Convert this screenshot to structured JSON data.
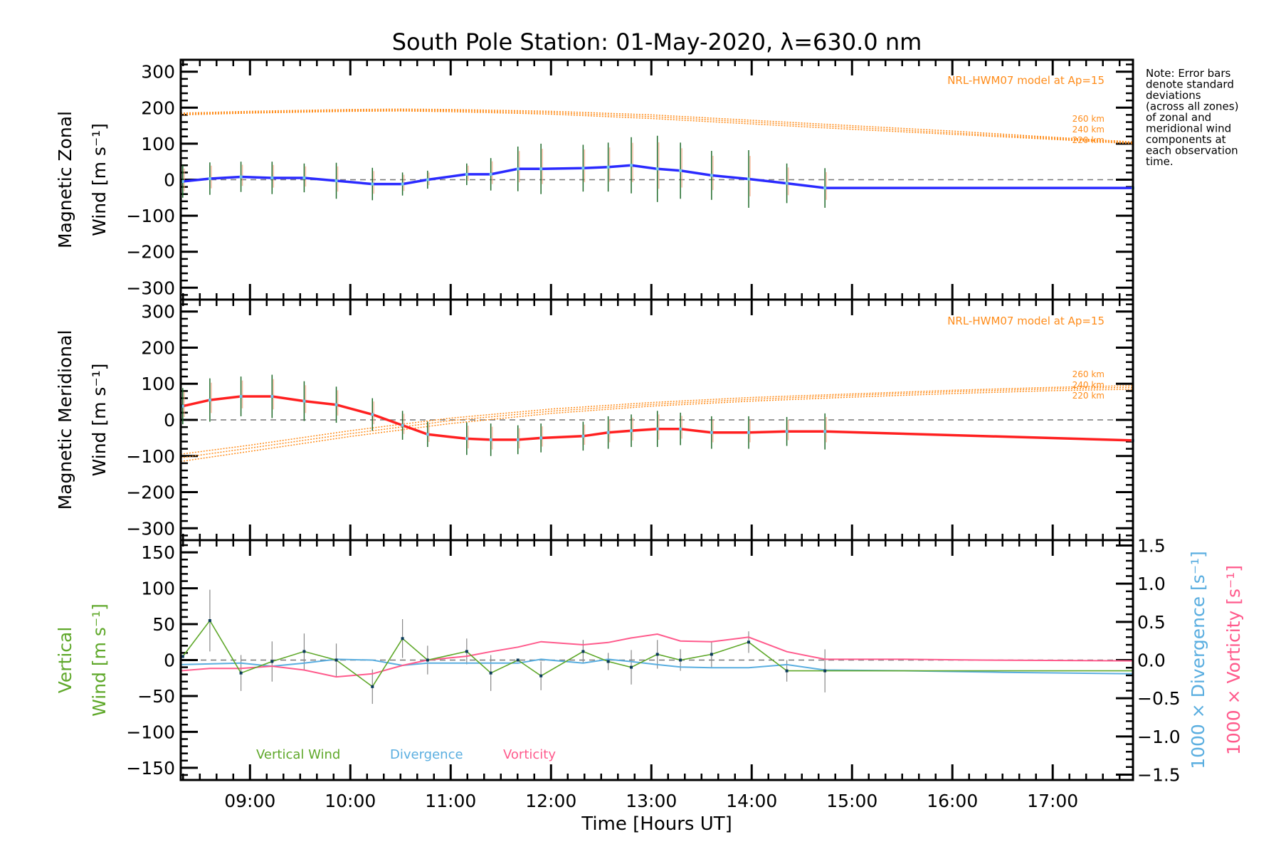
{
  "chart_data": {
    "type": "line",
    "title": "South Pole Station: 01-May-2020, λ=630.0 nm",
    "xlabel": "Time [Hours UT]",
    "xlim": [
      8.31,
      17.8
    ],
    "x_ticks": [
      9,
      10,
      11,
      12,
      13,
      14,
      15,
      16,
      17
    ],
    "x_tick_labels": [
      "09:00",
      "10:00",
      "11:00",
      "12:00",
      "13:00",
      "14:00",
      "15:00",
      "16:00",
      "17:00"
    ],
    "note": [
      "Note: Error bars",
      "denote standard",
      "deviations",
      "(across all zones)",
      "of zonal and",
      "meridional wind",
      "components at",
      "each observation",
      "time."
    ],
    "colors": {
      "zonal": "#2a2aff",
      "meridional": "#ff2020",
      "model": "#ff8c1a",
      "vertical": "#5fa82a",
      "divergence": "#5aaee0",
      "vorticity": "#ff5a8c",
      "errorbar": "#1f6b2a",
      "axis": "#000000"
    },
    "panels": [
      {
        "name": "zonal",
        "ylabel_line1": "Magnetic Zonal",
        "ylabel_line2": "Wind [m s⁻¹]",
        "ylim": [
          -333,
          333
        ],
        "y_ticks": [
          300,
          200,
          100,
          0,
          -100,
          -200,
          -300
        ],
        "y_tick_labels": [
          "300",
          "200",
          "100",
          "0",
          "−100",
          "−200",
          "−300"
        ],
        "model_label": "NRL-HWM07 model at Ap=15",
        "model_series": [
          {
            "name": "260 km",
            "x": [
              8.31,
              9,
              10,
              10.5,
              11,
              12,
              13,
              14,
              15,
              16,
              17,
              17.8
            ],
            "y": [
              185,
              190,
              195,
              196,
              195,
              190,
              180,
              165,
              150,
              135,
              118,
              105
            ]
          },
          {
            "name": "240 km",
            "x": [
              8.31,
              9,
              10,
              10.5,
              11,
              12,
              13,
              14,
              15,
              16,
              17,
              17.8
            ],
            "y": [
              182,
              187,
              192,
              193,
              192,
              186,
              175,
              160,
              145,
              130,
              115,
              103
            ]
          },
          {
            "name": "220 km",
            "x": [
              8.31,
              9,
              10,
              10.5,
              11,
              12,
              13,
              14,
              15,
              16,
              17,
              17.8
            ],
            "y": [
              180,
              185,
              190,
              191,
              189,
              182,
              170,
              155,
              140,
              126,
              112,
              100
            ]
          }
        ],
        "series": {
          "name": "Zonal wind",
          "x": [
            8.33,
            8.6,
            8.91,
            9.22,
            9.54,
            9.86,
            10.22,
            10.52,
            10.77,
            11.16,
            11.4,
            11.67,
            11.9,
            12.32,
            12.57,
            12.8,
            13.06,
            13.29,
            13.6,
            13.97,
            14.35,
            14.73,
            17.8
          ],
          "y": [
            -5,
            3,
            8,
            5,
            5,
            -3,
            -12,
            -12,
            0,
            15,
            15,
            30,
            30,
            32,
            35,
            40,
            30,
            25,
            12,
            2,
            -10,
            -23,
            -23
          ],
          "err": [
            45,
            45,
            42,
            45,
            40,
            50,
            45,
            32,
            25,
            30,
            45,
            62,
            70,
            65,
            68,
            78,
            92,
            78,
            68,
            80,
            55,
            55,
            0
          ]
        }
      },
      {
        "name": "meridional",
        "ylabel_line1": "Magnetic Meridional",
        "ylabel_line2": "Wind [m s⁻¹]",
        "ylim": [
          -333,
          333
        ],
        "y_ticks": [
          300,
          200,
          100,
          0,
          -100,
          -200,
          -300
        ],
        "y_tick_labels": [
          "300",
          "200",
          "100",
          "0",
          "−100",
          "−200",
          "−300"
        ],
        "model_label": "NRL-HWM07 model at Ap=15",
        "model_series": [
          {
            "name": "260 km",
            "x": [
              8.31,
              9,
              10,
              11,
              12,
              13,
              14,
              15,
              16,
              17,
              17.8
            ],
            "y": [
              -95,
              -70,
              -30,
              5,
              30,
              48,
              62,
              72,
              82,
              90,
              95
            ]
          },
          {
            "name": "240 km",
            "x": [
              8.31,
              9,
              10,
              11,
              12,
              13,
              14,
              15,
              16,
              17,
              17.8
            ],
            "y": [
              -105,
              -78,
              -38,
              -2,
              24,
              43,
              57,
              68,
              78,
              86,
              90
            ]
          },
          {
            "name": "220 km",
            "x": [
              8.31,
              9,
              10,
              11,
              12,
              13,
              14,
              15,
              16,
              17,
              17.8
            ],
            "y": [
              -115,
              -87,
              -46,
              -10,
              18,
              38,
              52,
              63,
              73,
              81,
              85
            ]
          }
        ],
        "series": {
          "name": "Meridional wind",
          "x": [
            8.33,
            8.6,
            8.91,
            9.22,
            9.54,
            9.86,
            10.22,
            10.52,
            10.77,
            11.16,
            11.4,
            11.67,
            11.9,
            12.32,
            12.57,
            12.8,
            13.06,
            13.29,
            13.6,
            13.97,
            14.35,
            14.73,
            17.8
          ],
          "y": [
            38,
            55,
            65,
            65,
            52,
            42,
            15,
            -15,
            -40,
            -52,
            -55,
            -55,
            -50,
            -45,
            -35,
            -30,
            -25,
            -25,
            -35,
            -35,
            -32,
            -32,
            -57
          ],
          "err": [
            50,
            60,
            55,
            60,
            55,
            50,
            45,
            40,
            35,
            45,
            45,
            40,
            40,
            40,
            45,
            45,
            50,
            45,
            45,
            45,
            40,
            50,
            0
          ]
        }
      },
      {
        "name": "vertical",
        "ylabel_line1": "Vertical",
        "ylabel_line2": "Wind [m s⁻¹]",
        "ylim": [
          -167,
          167
        ],
        "y_ticks": [
          150,
          100,
          50,
          0,
          -50,
          -100,
          -150
        ],
        "y_tick_labels": [
          "150",
          "100",
          "50",
          "0",
          "−50",
          "−100",
          "−150"
        ],
        "right_ylim": [
          -1.57,
          1.57
        ],
        "right_ticks": [
          1.5,
          1.0,
          0.5,
          0.0,
          -0.5,
          -1.0,
          -1.5
        ],
        "right_tick_labels": [
          "1.5",
          "1.0",
          "0.5",
          "0.0",
          "−0.5",
          "−1.0",
          "−1.5"
        ],
        "right_label_divergence": "1000 × Divergence [s⁻¹]",
        "right_label_vorticity": "1000 × Vorticity [s⁻¹]",
        "legend": [
          "Vertical Wind",
          "Divergence",
          "Vorticity"
        ],
        "legend_placement": "bottom-left",
        "series": [
          {
            "name": "Vertical Wind",
            "axis": "left",
            "x": [
              8.33,
              8.6,
              8.91,
              9.22,
              9.54,
              9.86,
              10.22,
              10.52,
              10.77,
              11.16,
              11.4,
              11.67,
              11.9,
              12.32,
              12.57,
              12.8,
              13.06,
              13.29,
              13.6,
              13.97,
              14.35,
              14.73,
              17.8
            ],
            "y": [
              5,
              55,
              -18,
              -2,
              12,
              0,
              -37,
              30,
              0,
              12,
              -18,
              0,
              -22,
              12,
              -2,
              -10,
              8,
              0,
              8,
              25,
              -15,
              -15,
              -15
            ],
            "err": [
              0,
              43,
              25,
              28,
              25,
              23,
              24,
              27,
              20,
              18,
              25,
              0,
              20,
              16,
              12,
              24,
              20,
              15,
              18,
              15,
              15,
              30,
              0
            ]
          },
          {
            "name": "Divergence",
            "axis": "right",
            "x": [
              8.31,
              8.91,
              9.22,
              9.54,
              9.86,
              10.22,
              10.52,
              10.77,
              11.16,
              11.4,
              11.67,
              11.9,
              12.32,
              12.57,
              12.8,
              13.06,
              13.29,
              13.6,
              13.97,
              14.35,
              14.73,
              15.5,
              16.5,
              17.8
            ],
            "y": [
              -0.06,
              -0.04,
              -0.08,
              -0.04,
              0.01,
              0.0,
              -0.07,
              -0.04,
              -0.04,
              -0.04,
              -0.04,
              0.01,
              -0.04,
              0.01,
              -0.02,
              -0.06,
              -0.09,
              -0.1,
              -0.1,
              -0.06,
              -0.13,
              -0.14,
              -0.16,
              -0.18
            ]
          },
          {
            "name": "Vorticity",
            "axis": "right",
            "x": [
              8.31,
              8.6,
              8.91,
              9.22,
              9.54,
              9.86,
              10.22,
              10.52,
              10.77,
              11.16,
              11.4,
              11.67,
              11.9,
              12.32,
              12.57,
              12.8,
              13.06,
              13.29,
              13.6,
              13.97,
              14.35,
              14.73,
              15.5,
              16.3,
              17.8
            ],
            "y": [
              -0.14,
              -0.11,
              -0.11,
              -0.08,
              -0.13,
              -0.22,
              -0.18,
              -0.07,
              0.0,
              0.05,
              0.11,
              0.17,
              0.24,
              0.2,
              0.23,
              0.29,
              0.34,
              0.25,
              0.24,
              0.3,
              0.11,
              0.01,
              0.01,
              0.0,
              -0.01
            ]
          }
        ]
      }
    ]
  }
}
